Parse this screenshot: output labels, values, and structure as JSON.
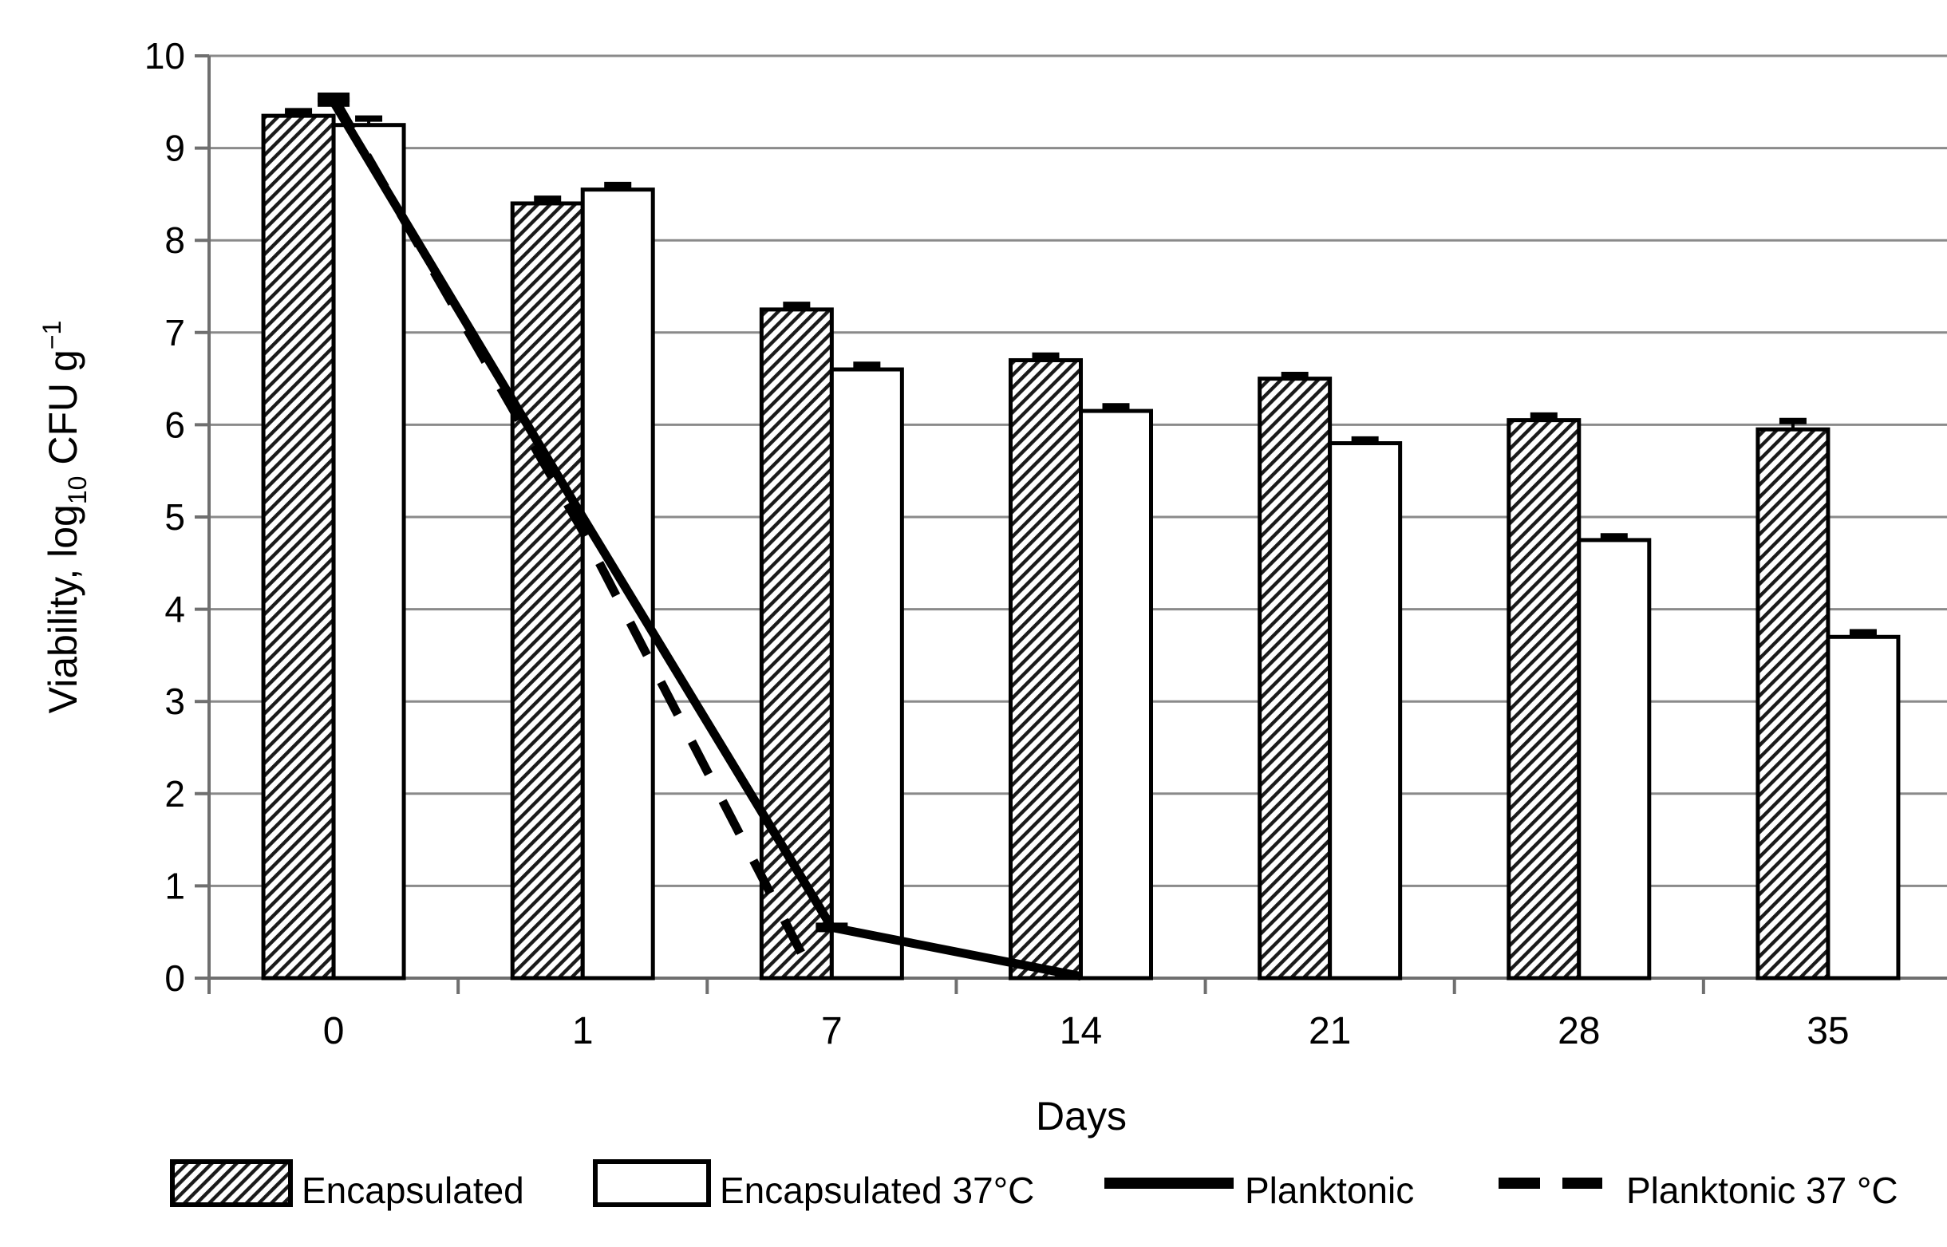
{
  "figure": {
    "background": "#ffffff"
  },
  "chart_data": {
    "type": "bar+line",
    "title": "",
    "categories": [
      "0",
      "1",
      "7",
      "14",
      "21",
      "28",
      "35"
    ],
    "xlabel": "Days",
    "ylabel": {
      "full": "Viability, log10 CFU g−1",
      "pre": "Viability, log",
      "sub": "10",
      "mid": " CFU g",
      "sup": "−1"
    },
    "yaxis": {
      "min": 0,
      "max": 10,
      "tick_step": 1,
      "ticks": [
        "0",
        "1",
        "2",
        "3",
        "4",
        "5",
        "6",
        "7",
        "8",
        "9",
        "10"
      ]
    },
    "grid": true,
    "legend_position": "bottom",
    "bar_series": [
      {
        "name": "Encapsulated",
        "pattern": "diagonal-hatch",
        "fill": "#ffffff",
        "values": [
          9.35,
          8.4,
          7.25,
          6.7,
          6.5,
          6.05,
          5.95
        ],
        "errors": [
          0.05,
          0.05,
          0.05,
          0.05,
          0.04,
          0.05,
          0.09
        ]
      },
      {
        "name": "Encapsulated 37°C",
        "pattern": "none",
        "fill": "#ffffff",
        "values": [
          9.25,
          8.55,
          6.6,
          6.15,
          5.8,
          4.75,
          3.7
        ],
        "errors": [
          0.07,
          0.05,
          0.05,
          0.05,
          0.04,
          0.04,
          0.05
        ]
      }
    ],
    "line_series": [
      {
        "name": "Planktonic",
        "dash": "solid",
        "point_days": [
          0,
          1,
          7,
          14
        ],
        "points": [
          [
            0,
            9.5
          ],
          [
            1,
            5.0
          ],
          [
            2,
            0.55
          ],
          [
            3,
            0.02
          ]
        ],
        "markers": [
          0,
          2
        ]
      },
      {
        "name": "Planktonic 37 °C",
        "dash": "dashed",
        "point_days": [
          0,
          1,
          7
        ],
        "points": [
          [
            0,
            9.55
          ],
          [
            1,
            4.85
          ],
          [
            1.93,
            0
          ]
        ],
        "markers": [
          0
        ]
      }
    ],
    "colors": {
      "ink": "#000000",
      "grid": "#8a8a8a",
      "axis": "#6f6f6f",
      "bar_stroke": "#000000"
    }
  }
}
